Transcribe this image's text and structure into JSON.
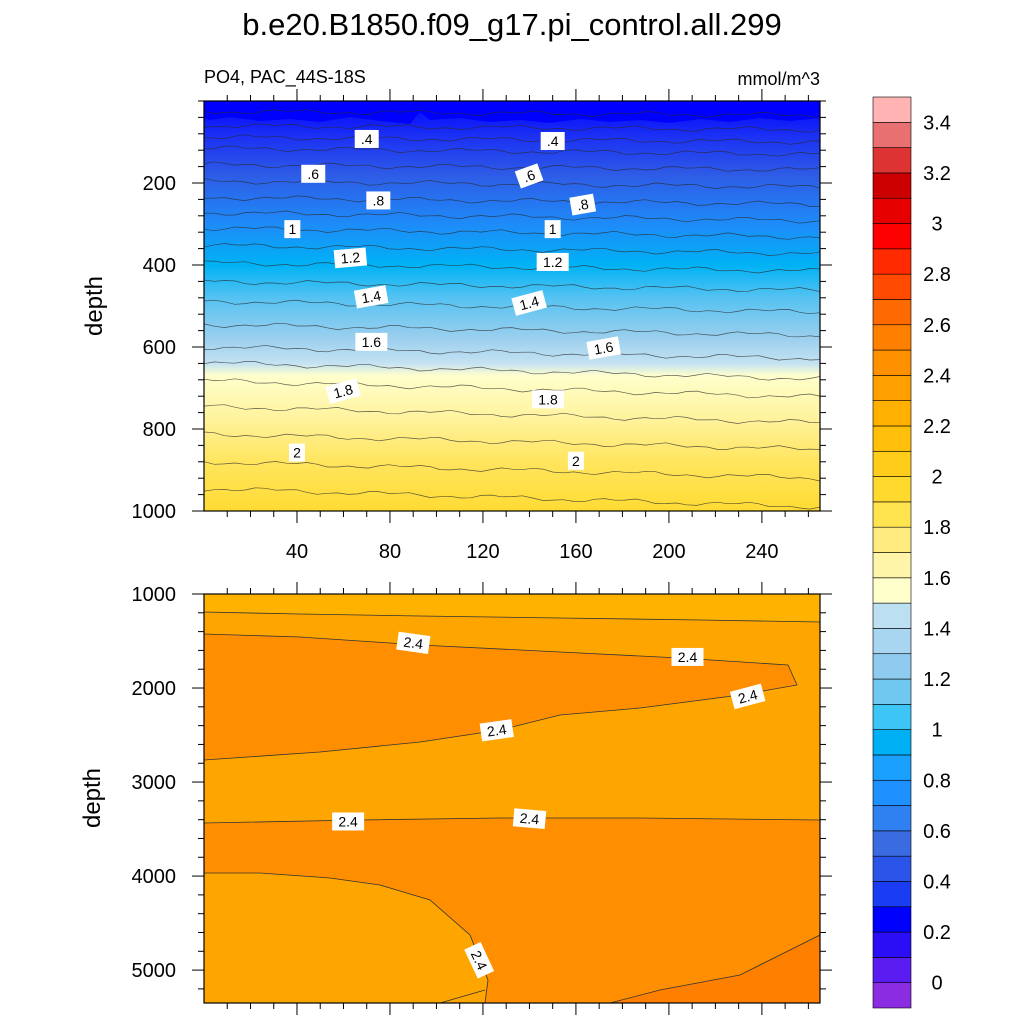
{
  "chart_data": {
    "type": "contour",
    "title": "b.e20.B1850.f09_g17.pi_control.all.299",
    "colorbar": {
      "ticks": [
        "0",
        "0.2",
        "0.4",
        "0.6",
        "0.8",
        "1",
        "1.2",
        "1.4",
        "1.6",
        "1.8",
        "2",
        "2.2",
        "2.4",
        "2.6",
        "2.8",
        "3",
        "3.2",
        "3.4"
      ],
      "colors": [
        "#8B2BE2",
        "#5A1CF0",
        "#2B0EF5",
        "#0000FF",
        "#1A3CF2",
        "#2B55E8",
        "#3A6BE0",
        "#2F80F0",
        "#1E90FF",
        "#1AA0FF",
        "#00B0F5",
        "#3CC5F5",
        "#6FC8F0",
        "#8FCBEE",
        "#A8D5EF",
        "#BCDFF2",
        "#FFFFCC",
        "#FFF5A8",
        "#FFEB80",
        "#FFE34F",
        "#FFD92E",
        "#FFCC1A",
        "#FFBF0A",
        "#FFB000",
        "#FFA000",
        "#FF9000",
        "#FF7F00",
        "#FF6A00",
        "#FF4A00",
        "#FF2A00",
        "#FF0000",
        "#E60000",
        "#CC0000",
        "#DD3333",
        "#E87070",
        "#FFB3B3"
      ]
    },
    "panels": [
      {
        "name": "upper",
        "subtitle_left": "PO4, PAC_44S-18S",
        "subtitle_right": "mmol/m^3",
        "ylabel": "depth",
        "xlim": [
          0,
          265
        ],
        "ylim": [
          0,
          1000
        ],
        "y_inverted": true,
        "xticks": [
          40,
          80,
          120,
          160,
          200,
          240
        ],
        "xtick_labels": [
          "40",
          "80",
          "120",
          "160",
          "200",
          "240"
        ],
        "yticks": [
          200,
          400,
          600,
          800,
          1000
        ],
        "ytick_labels": [
          "200",
          "400",
          "600",
          "800",
          "1000"
        ],
        "contour_levels": [
          0.2,
          0.3,
          0.4,
          0.5,
          0.6,
          0.7,
          0.8,
          0.9,
          1.0,
          1.1,
          1.2,
          1.3,
          1.4,
          1.5,
          1.6,
          1.7,
          1.8,
          1.9,
          2.0,
          2.1,
          2.2
        ],
        "contour_depth_west": [
          25,
          60,
          88,
          115,
          155,
          195,
          235,
          272,
          310,
          352,
          395,
          440,
          488,
          545,
          600,
          638,
          682,
          745,
          812,
          880,
          945
        ],
        "contour_depth_east": [
          35,
          70,
          100,
          130,
          168,
          210,
          252,
          292,
          332,
          372,
          415,
          462,
          515,
          572,
          628,
          678,
          722,
          785,
          850,
          920,
          990
        ],
        "labels": [
          {
            "text": ".4",
            "x": 70,
            "d": 95
          },
          {
            "text": ".4",
            "x": 150,
            "d": 100
          },
          {
            "text": ".6",
            "x": 47,
            "d": 180
          },
          {
            "text": ".6",
            "x": 140,
            "d": 185
          },
          {
            "text": ".8",
            "x": 75,
            "d": 245
          },
          {
            "text": ".8",
            "x": 163,
            "d": 255
          },
          {
            "text": "1",
            "x": 38,
            "d": 315
          },
          {
            "text": "1",
            "x": 150,
            "d": 315
          },
          {
            "text": "1.2",
            "x": 63,
            "d": 385
          },
          {
            "text": "1.2",
            "x": 150,
            "d": 395
          },
          {
            "text": "1.4",
            "x": 72,
            "d": 480
          },
          {
            "text": "1.4",
            "x": 140,
            "d": 495
          },
          {
            "text": "1.6",
            "x": 72,
            "d": 590
          },
          {
            "text": "1.6",
            "x": 172,
            "d": 605
          },
          {
            "text": "1.8",
            "x": 60,
            "d": 710
          },
          {
            "text": "1.8",
            "x": 148,
            "d": 730
          },
          {
            "text": "2",
            "x": 40,
            "d": 860
          },
          {
            "text": "2",
            "x": 160,
            "d": 880
          }
        ]
      },
      {
        "name": "lower",
        "ylabel": "depth",
        "xlim": [
          0,
          265
        ],
        "ylim": [
          1000,
          5350
        ],
        "y_inverted": true,
        "yticks": [
          1000,
          2000,
          3000,
          4000,
          5000
        ],
        "ytick_labels": [
          "1000",
          "2000",
          "3000",
          "4000",
          "5000"
        ],
        "contour_value": 2.4,
        "labels": [
          {
            "text": "2.4",
            "x": 90,
            "d": 1530
          },
          {
            "text": "2.4",
            "x": 208,
            "d": 1680
          },
          {
            "text": "2.4",
            "x": 234,
            "d": 2100
          },
          {
            "text": "2.4",
            "x": 126,
            "d": 2460
          },
          {
            "text": "2.4",
            "x": 62,
            "d": 3430
          },
          {
            "text": "2.4",
            "x": 140,
            "d": 3400
          },
          {
            "text": "2.4",
            "x": 118,
            "d": 4900
          }
        ]
      }
    ]
  }
}
